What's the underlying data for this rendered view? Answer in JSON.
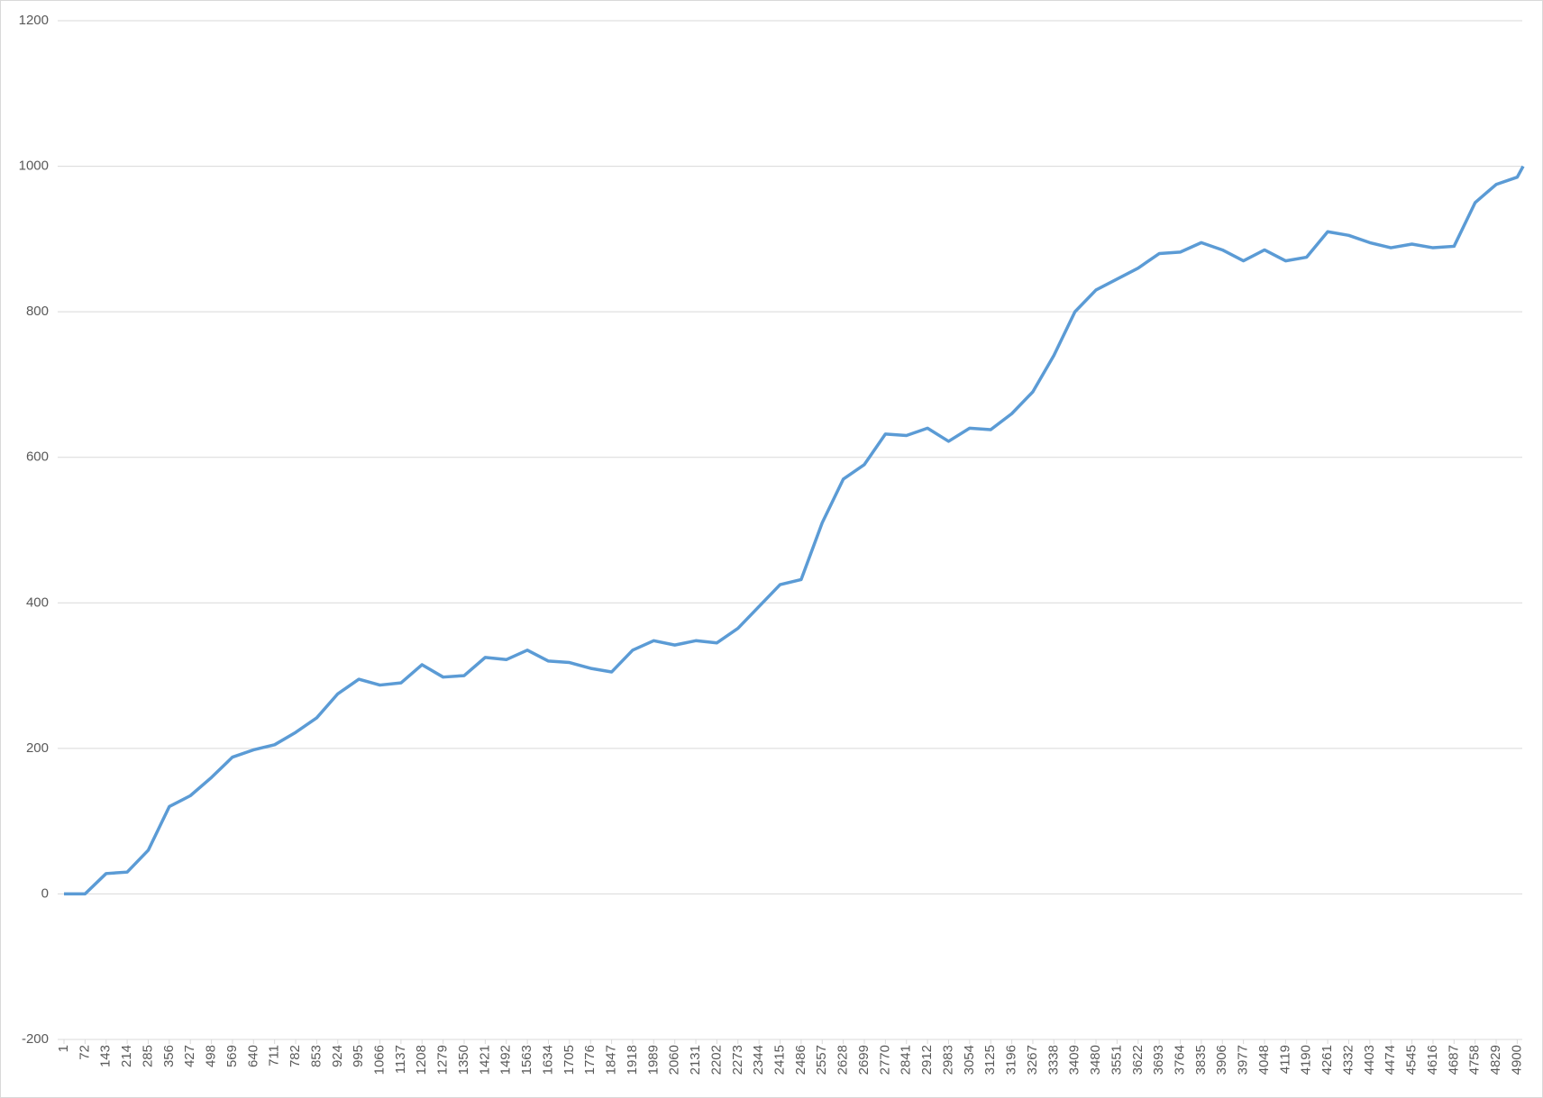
{
  "chart_data": {
    "type": "line",
    "color": "#5b9bd5",
    "grid": true,
    "x": [
      1,
      72,
      143,
      214,
      285,
      356,
      427,
      498,
      569,
      640,
      711,
      782,
      853,
      924,
      995,
      1066,
      1137,
      1208,
      1279,
      1350,
      1421,
      1492,
      1563,
      1634,
      1705,
      1776,
      1847,
      1918,
      1989,
      2060,
      2131,
      2202,
      2273,
      2344,
      2415,
      2486,
      2557,
      2628,
      2699,
      2770,
      2841,
      2912,
      2983,
      3054,
      3125,
      3196,
      3267,
      3338,
      3409,
      3480,
      3551,
      3622,
      3693,
      3764,
      3835,
      3906,
      3977,
      4048,
      4119,
      4190,
      4261,
      4332,
      4403,
      4474,
      4545,
      4616,
      4687,
      4758,
      4829,
      4900,
      4920
    ],
    "values": [
      0,
      0,
      28,
      30,
      60,
      120,
      135,
      160,
      188,
      198,
      205,
      222,
      242,
      275,
      295,
      287,
      290,
      315,
      298,
      300,
      325,
      322,
      335,
      320,
      318,
      310,
      305,
      335,
      348,
      342,
      348,
      345,
      365,
      395,
      425,
      432,
      510,
      570,
      590,
      632,
      630,
      640,
      622,
      640,
      638,
      660,
      690,
      740,
      800,
      830,
      845,
      860,
      880,
      882,
      895,
      885,
      870,
      885,
      870,
      875,
      910,
      905,
      895,
      888,
      893,
      888,
      890,
      950,
      975,
      985,
      1000
    ],
    "xlim": [
      1,
      4920
    ],
    "xticks": [
      1,
      72,
      143,
      214,
      285,
      356,
      427,
      498,
      569,
      640,
      711,
      782,
      853,
      924,
      995,
      1066,
      1137,
      1208,
      1279,
      1350,
      1421,
      1492,
      1563,
      1634,
      1705,
      1776,
      1847,
      1918,
      1989,
      2060,
      2131,
      2202,
      2273,
      2344,
      2415,
      2486,
      2557,
      2628,
      2699,
      2770,
      2841,
      2912,
      2983,
      3054,
      3125,
      3196,
      3267,
      3338,
      3409,
      3480,
      3551,
      3622,
      3693,
      3764,
      3835,
      3906,
      3977,
      4048,
      4119,
      4190,
      4261,
      4332,
      4403,
      4474,
      4545,
      4616,
      4687,
      4758,
      4829,
      4900
    ],
    "ylim": [
      -200,
      1200
    ],
    "yticks": [
      -200,
      0,
      200,
      400,
      600,
      800,
      1000,
      1200
    ]
  }
}
